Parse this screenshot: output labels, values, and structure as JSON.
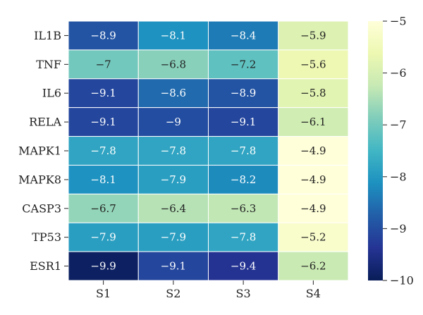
{
  "chart_data": {
    "type": "heatmap",
    "title": "",
    "xlabel": "",
    "ylabel": "",
    "columns": [
      "S1",
      "S2",
      "S3",
      "S4"
    ],
    "rows": [
      "IL1B",
      "TNF",
      "IL6",
      "RELA",
      "MAPK1",
      "MAPK8",
      "CASP3",
      "TP53",
      "ESR1"
    ],
    "values": [
      [
        -8.9,
        -8.1,
        -8.4,
        -5.9
      ],
      [
        -7,
        -6.8,
        -7.2,
        -5.6
      ],
      [
        -9.1,
        -8.6,
        -8.9,
        -5.8
      ],
      [
        -9.1,
        -9,
        -9.1,
        -6.1
      ],
      [
        -7.8,
        -7.8,
        -7.8,
        -4.9
      ],
      [
        -8.1,
        -7.9,
        -8.2,
        -4.9
      ],
      [
        -6.7,
        -6.4,
        -6.3,
        -4.9
      ],
      [
        -7.9,
        -7.9,
        -7.8,
        -5.2
      ],
      [
        -9.9,
        -9.1,
        -9.4,
        -6.2
      ]
    ],
    "value_labels": [
      [
        "−8.9",
        "−8.1",
        "−8.4",
        "−5.9"
      ],
      [
        "−7",
        "−6.8",
        "−7.2",
        "−5.6"
      ],
      [
        "−9.1",
        "−8.6",
        "−8.9",
        "−5.8"
      ],
      [
        "−9.1",
        "−9",
        "−9.1",
        "−6.1"
      ],
      [
        "−7.8",
        "−7.8",
        "−7.8",
        "−4.9"
      ],
      [
        "−8.1",
        "−7.9",
        "−8.2",
        "−4.9"
      ],
      [
        "−6.7",
        "−6.4",
        "−6.3",
        "−4.9"
      ],
      [
        "−7.9",
        "−7.9",
        "−7.8",
        "−5.2"
      ],
      [
        "−9.9",
        "−9.1",
        "−9.4",
        "−6.2"
      ]
    ],
    "colorbar": {
      "range": [
        -10,
        -5
      ],
      "ticks": [
        -5,
        -6,
        -7,
        -8,
        -9,
        -10
      ],
      "tick_labels": [
        "−5",
        "−6",
        "−7",
        "−8",
        "−9",
        "−10"
      ]
    },
    "colormap": [
      "#ffffd9",
      "#edf8b1",
      "#c7e9b4",
      "#7fcdbb",
      "#41b6c4",
      "#1d91c0",
      "#225ea8",
      "#253494",
      "#081d58"
    ]
  }
}
